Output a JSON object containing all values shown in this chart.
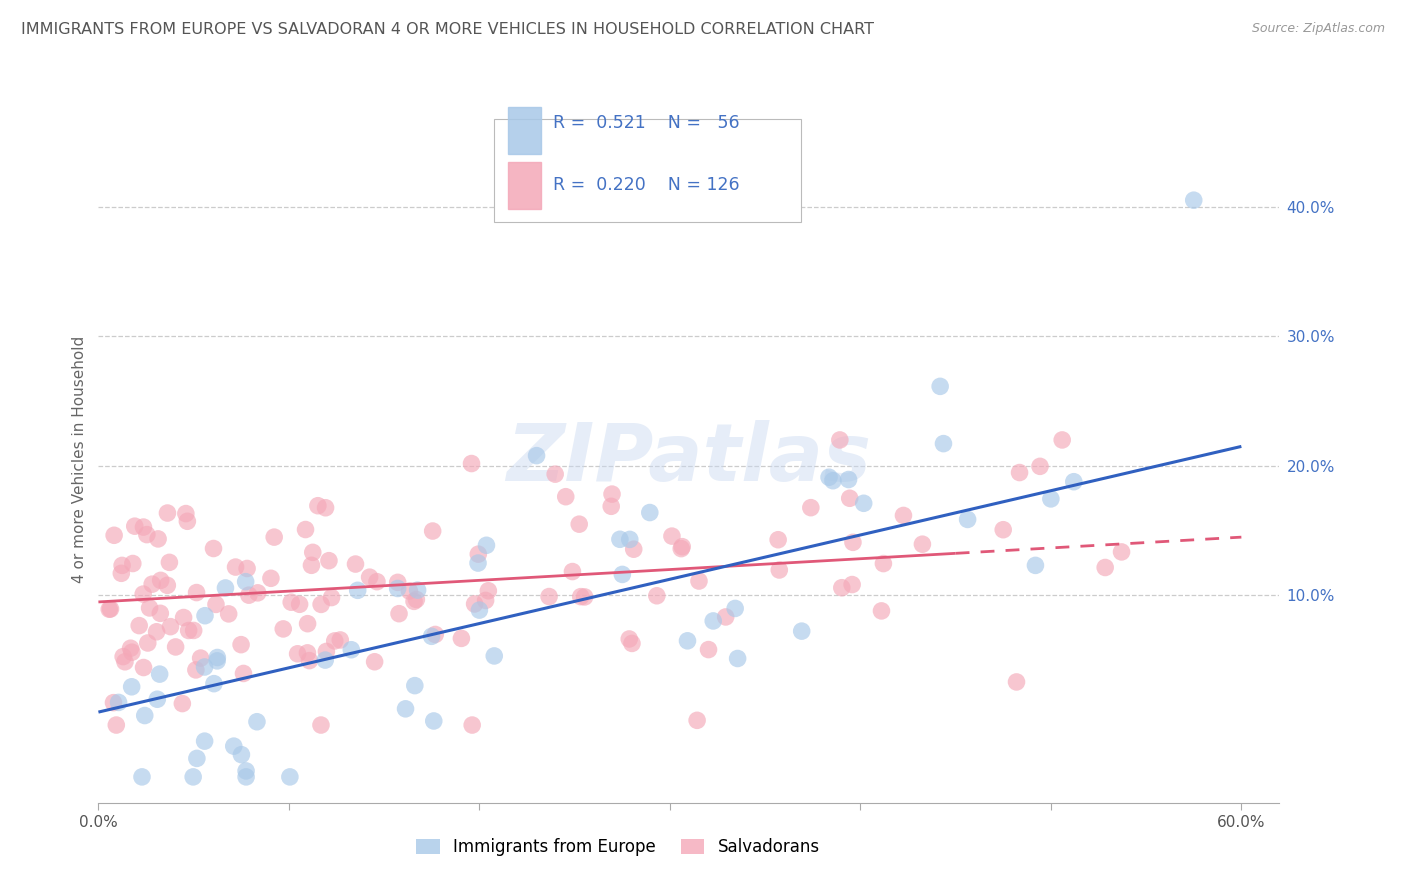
{
  "title": "IMMIGRANTS FROM EUROPE VS SALVADORAN 4 OR MORE VEHICLES IN HOUSEHOLD CORRELATION CHART",
  "source": "Source: ZipAtlas.com",
  "ylabel": "4 or more Vehicles in Household",
  "xlim": [
    0.0,
    0.62
  ],
  "ylim": [
    -0.06,
    0.47
  ],
  "blue_R": 0.521,
  "blue_N": 56,
  "pink_R": 0.22,
  "pink_N": 126,
  "blue_color": "#a8c8e8",
  "pink_color": "#f4a8b8",
  "blue_line_color": "#3060c0",
  "pink_line_color": "#e05878",
  "legend_label_blue": "Immigrants from Europe",
  "legend_label_pink": "Salvadorans",
  "watermark": "ZIPatlas",
  "blue_line_x0": 0.0,
  "blue_line_y0": 0.01,
  "blue_line_x1": 0.6,
  "blue_line_y1": 0.215,
  "pink_line_x0": 0.0,
  "pink_line_y0": 0.095,
  "pink_line_x1": 0.6,
  "pink_line_y1": 0.145,
  "background_color": "#ffffff",
  "grid_color": "#cccccc",
  "title_color": "#555555",
  "right_axis_color": "#4472c4"
}
